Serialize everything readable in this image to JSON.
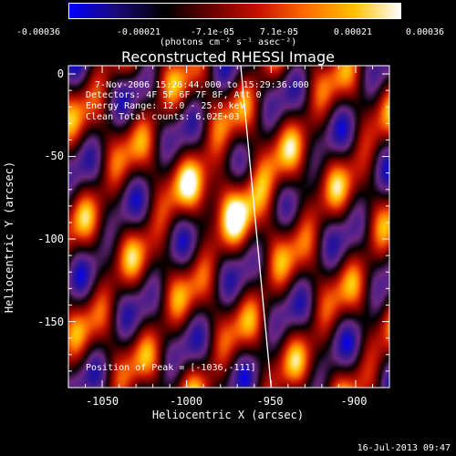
{
  "colorbar": {
    "ticks": [
      "-0.00036",
      "-0.00021",
      "-7.1e-05",
      "7.1e-05",
      "0.00021",
      "0.00036"
    ],
    "units": "(photons cm⁻² s⁻¹ asec⁻²)",
    "colors": [
      "#0000ff",
      "#1a0a7a",
      "#000000",
      "#6a0000",
      "#c81000",
      "#ff6a00",
      "#ffc000",
      "#ffffff"
    ]
  },
  "chart_data": {
    "type": "heatmap",
    "title": "Reconstructed RHESSI Image",
    "xlabel": "Heliocentric X (arcsec)",
    "ylabel": "Heliocentric Y (arcsec)",
    "xlim": [
      -1070,
      -880
    ],
    "ylim": [
      -190,
      5
    ],
    "x_ticks": [
      -1050,
      -1000,
      -950,
      -900
    ],
    "y_ticks": [
      0,
      -50,
      -100,
      -150
    ],
    "x_tick_labels": [
      "-1050",
      "-1000",
      "-950",
      "-900"
    ],
    "y_tick_labels": [
      "0",
      "-50",
      "-100",
      "-150"
    ],
    "value_range": [
      -0.00036,
      0.00036
    ],
    "peak_position": [
      -1036,
      -111
    ],
    "limb_line": [
      [
        -968,
        5
      ],
      [
        -950,
        -190
      ]
    ],
    "annotations": [
      "7-Nov-2006 15:26:44.000 to 15:29:36.000",
      "Detectors: 4F 5F 6F 7F 8F, Att 0",
      "Energy Range: 12.0 - 25.0 keV",
      "Clean     Total counts: 6.02E+03",
      "Position of Peak = [-1036,-111]"
    ]
  },
  "timestamp": "16-Jul-2013 09:47"
}
